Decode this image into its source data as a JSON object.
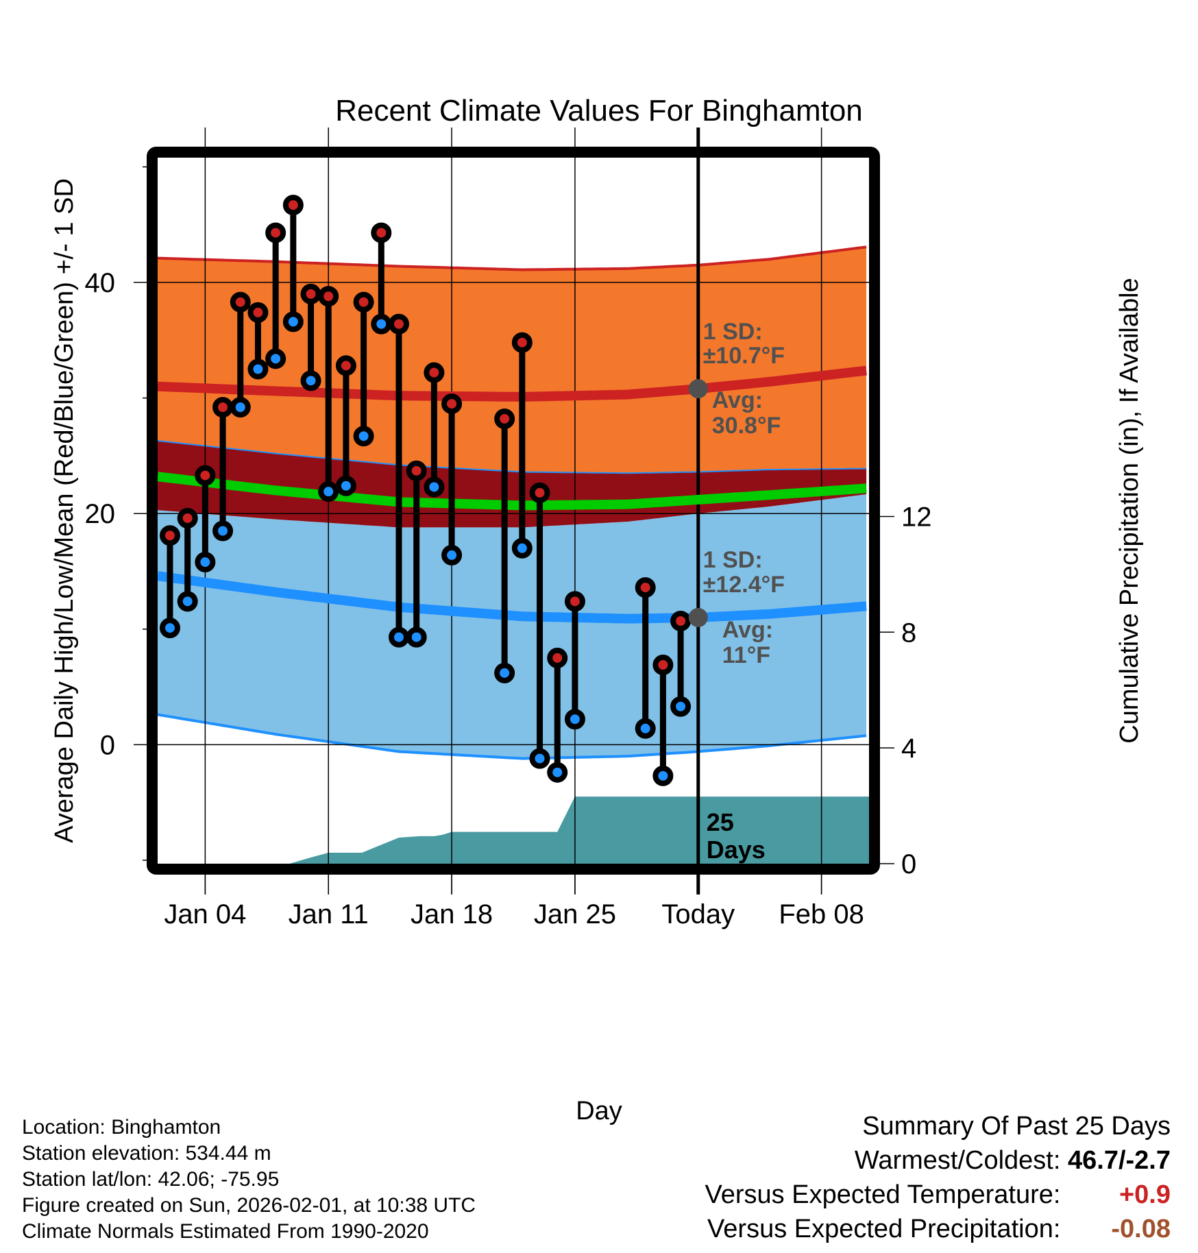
{
  "chart_data": {
    "type": "line",
    "title": "Recent Climate Values For Binghamton",
    "xlabel": "Day",
    "ylabel": "Average Daily High/Low/Mean (Red/Blue/Green) +/- 1 SD",
    "y2label": "Cumulative Precipitation (in), If Available",
    "xlim_day": [
      1.3,
      41.7
    ],
    "ylim": [
      -10.3,
      50.8
    ],
    "y2lim": [
      0,
      24.4
    ],
    "grid": true,
    "x_ticks": [
      {
        "day": 4,
        "label": "Jan 04",
        "bold": false
      },
      {
        "day": 11,
        "label": "Jan 11",
        "bold": false
      },
      {
        "day": 18,
        "label": "Jan 18",
        "bold": false
      },
      {
        "day": 25,
        "label": "Jan 25",
        "bold": false
      },
      {
        "day": 32,
        "label": "Today",
        "bold": false
      },
      {
        "day": 39,
        "label": "Feb 08",
        "bold": false
      }
    ],
    "y_ticks": [
      0,
      20,
      40
    ],
    "y_minor_ticks": [
      -10,
      10,
      30,
      50
    ],
    "y2_ticks": [
      0,
      4,
      8,
      12
    ],
    "today_day": 32,
    "normals": {
      "days": [
        1.3,
        8,
        15,
        22,
        28,
        32,
        36,
        41.7
      ],
      "high_plus_sd": [
        42.1,
        41.8,
        41.4,
        41.1,
        41.2,
        41.5,
        42.0,
        43.1
      ],
      "high_avg": [
        31.0,
        30.6,
        30.2,
        30.1,
        30.3,
        30.8,
        31.4,
        32.4
      ],
      "high_minus_sd": [
        26.3,
        25.2,
        24.2,
        23.6,
        23.5,
        23.6,
        23.8,
        23.9
      ],
      "mean": [
        23.2,
        22.0,
        21.0,
        20.7,
        20.8,
        21.2,
        21.6,
        22.2
      ],
      "low_plus_sd": [
        20.3,
        19.5,
        18.8,
        18.8,
        19.3,
        20.0,
        20.6,
        21.7
      ],
      "low_avg": [
        14.6,
        13.2,
        11.9,
        11.1,
        10.9,
        11.0,
        11.3,
        12.0
      ],
      "low_minus_sd": [
        2.6,
        0.9,
        -0.6,
        -1.2,
        -1.0,
        -0.6,
        -0.1,
        0.8
      ]
    },
    "series": [
      {
        "name": "Daily High",
        "color": "#cc2222",
        "days": [
          2,
          3,
          4,
          5,
          6,
          7,
          8,
          9,
          10,
          11,
          12,
          13,
          14,
          15,
          16,
          17,
          18,
          21,
          22,
          23,
          24,
          25,
          29,
          30,
          31
        ],
        "values": [
          18.1,
          19.6,
          23.3,
          29.2,
          38.3,
          37.4,
          44.3,
          46.7,
          39.0,
          38.8,
          32.8,
          38.3,
          44.3,
          36.4,
          23.7,
          32.2,
          29.5,
          28.2,
          34.8,
          21.8,
          7.5,
          12.4,
          13.6,
          6.9,
          10.7
        ]
      },
      {
        "name": "Daily Low",
        "color": "#1e90ff",
        "days": [
          2,
          3,
          4,
          5,
          6,
          7,
          8,
          9,
          10,
          11,
          12,
          13,
          14,
          15,
          16,
          17,
          18,
          21,
          22,
          23,
          24,
          25,
          29,
          30,
          31
        ],
        "values": [
          10.1,
          12.4,
          15.8,
          18.5,
          29.2,
          32.5,
          33.4,
          36.6,
          31.5,
          21.9,
          22.4,
          26.7,
          36.4,
          9.3,
          9.3,
          22.3,
          16.4,
          6.2,
          17.0,
          -1.2,
          -2.4,
          2.2,
          1.4,
          -2.7,
          3.3
        ]
      }
    ],
    "precipitation": {
      "name": "Cumulative Precipitation (in)",
      "color": "#4a9aa2",
      "days": [
        1.3,
        8.8,
        9.9,
        11.0,
        12.9,
        15.0,
        16.2,
        17.0,
        17.5,
        18.0,
        24.0,
        25.0,
        32.0,
        41.7
      ],
      "values": [
        0,
        0,
        0.2,
        0.38,
        0.38,
        0.9,
        0.95,
        0.95,
        1.0,
        1.1,
        1.1,
        2.32,
        2.32,
        2.32
      ]
    },
    "annotations": {
      "high_sd_label": "1 SD:",
      "high_sd_value": "±10.7°F",
      "high_avg_label": "Avg:",
      "high_avg_value": "30.8°F",
      "low_sd_label": "1 SD:",
      "low_sd_value": "±12.4°F",
      "low_avg_label": "Avg:",
      "low_avg_value": "11°F",
      "days_count": "25",
      "days_word": "Days",
      "marker_high_avg": 30.8,
      "marker_low_avg": 11
    },
    "colors": {
      "high_band": "#f4782c",
      "high_line": "#cc2222",
      "overlap_band": "#920e16",
      "mean_line": "#00cc00",
      "low_band": "#82c1e7",
      "low_line": "#1e90ff",
      "annotation": "#505050"
    }
  },
  "info": {
    "location": "Location: Binghamton",
    "elevation": "Station elevation: 534.44 m",
    "latlon": "Station lat/lon: 42.06; -75.95",
    "created": "Figure created on Sun, 2026-02-01, at 10:38 UTC",
    "normals": "Climate Normals Estimated From 1990-2020"
  },
  "summary": {
    "title": "Summary Of Past 25 Days",
    "warmest_coldest_label": "Warmest/Coldest:",
    "warmest_coldest_value": "46.7/-2.7",
    "temp_label": "Versus Expected Temperature:",
    "temp_value": "+0.9",
    "temp_color": "#cc2222",
    "precip_label": "Versus Expected Precipitation:",
    "precip_value": "-0.08",
    "precip_color": "#a0522d"
  }
}
